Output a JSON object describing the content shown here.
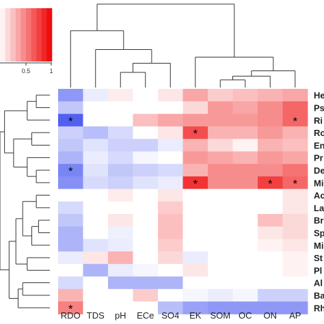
{
  "chart_data": {
    "type": "heatmap",
    "title": "",
    "columns": [
      "RDO",
      "TDS",
      "pH",
      "ECe",
      "SO4",
      "EK",
      "SOM",
      "OC",
      "ON",
      "AP"
    ],
    "rows": [
      "He",
      "Ps",
      "Ri",
      "Ro",
      "En",
      "Pr",
      "De",
      "Mi",
      "Ac",
      "La",
      "Br",
      "Sp",
      "Mi",
      "St",
      "Pl",
      "Al",
      "Ba",
      "Rh"
    ],
    "values": [
      [
        -0.55,
        -0.1,
        0.08,
        0.0,
        0.1,
        0.35,
        0.2,
        0.25,
        0.3,
        0.35
      ],
      [
        -0.3,
        0.0,
        0.0,
        0.0,
        0.0,
        0.15,
        0.4,
        0.35,
        0.45,
        0.6
      ],
      [
        -0.85,
        0.0,
        0.0,
        0.25,
        0.35,
        0.4,
        0.4,
        0.4,
        0.45,
        0.6
      ],
      [
        -0.25,
        -0.35,
        -0.2,
        0.0,
        0.1,
        0.7,
        0.3,
        0.3,
        0.4,
        0.3
      ],
      [
        -0.3,
        -0.15,
        -0.25,
        -0.25,
        -0.1,
        0.3,
        0.15,
        0.05,
        0.3,
        0.25
      ],
      [
        -0.4,
        -0.1,
        -0.2,
        -0.05,
        0.0,
        0.4,
        0.35,
        0.3,
        0.4,
        0.35
      ],
      [
        -0.65,
        -0.15,
        -0.3,
        -0.25,
        -0.2,
        0.3,
        0.45,
        0.45,
        0.45,
        0.55
      ],
      [
        -0.6,
        -0.2,
        -0.25,
        -0.15,
        -0.1,
        0.8,
        0.45,
        0.45,
        0.75,
        0.6
      ],
      [
        0.0,
        0.0,
        0.08,
        0.0,
        0.1,
        0.0,
        0.0,
        0.0,
        0.0,
        0.1
      ],
      [
        -0.2,
        0.0,
        0.0,
        0.0,
        0.2,
        0.0,
        0.0,
        0.0,
        0.0,
        0.1
      ],
      [
        -0.3,
        0.0,
        0.1,
        0.0,
        0.25,
        0.0,
        0.0,
        0.0,
        0.25,
        0.15
      ],
      [
        -0.4,
        0.0,
        -0.08,
        0.0,
        0.25,
        0.0,
        0.0,
        0.0,
        0.1,
        0.15
      ],
      [
        -0.4,
        -0.15,
        -0.1,
        0.0,
        0.2,
        0.0,
        0.0,
        0.0,
        0.05,
        0.1
      ],
      [
        -0.1,
        0.1,
        0.3,
        0.0,
        0.15,
        -0.1,
        0.0,
        0.0,
        0.0,
        0.05
      ],
      [
        0.0,
        -0.4,
        -0.1,
        -0.05,
        0.0,
        0.1,
        0.0,
        0.0,
        0.0,
        0.05
      ],
      [
        -0.2,
        0.0,
        -0.4,
        -0.4,
        -0.4,
        0.0,
        0.0,
        0.0,
        0.0,
        0.0
      ],
      [
        0.3,
        0.0,
        0.0,
        0.2,
        0.0,
        -0.05,
        -0.1,
        -0.05,
        -0.25,
        -0.25
      ],
      [
        0.5,
        0.0,
        0.0,
        0.0,
        -0.35,
        -0.5,
        -0.55,
        -0.55,
        -0.55,
        -0.55
      ]
    ],
    "significant": [
      [
        2,
        0
      ],
      [
        3,
        5
      ],
      [
        2,
        9
      ],
      [
        6,
        0
      ],
      [
        7,
        5
      ],
      [
        7,
        8
      ],
      [
        7,
        9
      ],
      [
        17,
        0
      ]
    ],
    "significance_marker": "*",
    "color_scale": {
      "negative": "#3344ee",
      "zero": "#ffffff",
      "positive": "#ee0000"
    },
    "legend": {
      "position": "top-left",
      "ticks": [
        "0.5",
        "1"
      ],
      "range": [
        0,
        1
      ]
    },
    "row_dendrogram": {
      "nodes": [
        {
          "children": [
            0,
            1
          ],
          "height": 0.3
        },
        {
          "children": [
            18,
            2
          ],
          "height": 0.5
        },
        {
          "children": [
            3,
            4
          ],
          "height": 0.4
        },
        {
          "children": [
            6,
            7
          ],
          "height": 0.3
        },
        {
          "children": [
            5,
            21
          ],
          "height": 0.5
        },
        {
          "children": [
            20,
            22
          ],
          "height": 0.8
        },
        {
          "children": [
            19,
            23
          ],
          "height": 1.0
        },
        {
          "children": [
            8,
            9
          ],
          "height": 0.3
        },
        {
          "children": [
            10,
            11
          ],
          "height": 0.25
        },
        {
          "children": [
            26,
            12
          ],
          "height": 0.4
        },
        {
          "children": [
            25,
            27
          ],
          "height": 0.6
        },
        {
          "children": [
            13,
            14
          ],
          "height": 0.5
        },
        {
          "children": [
            28,
            29
          ],
          "height": 0.75
        },
        {
          "children": [
            15,
            16
          ],
          "height": 0.6
        },
        {
          "children": [
            31,
            17
          ],
          "height": 0.7
        },
        {
          "children": [
            30,
            32
          ],
          "height": 0.9
        },
        {
          "children": [
            24,
            33
          ],
          "height": 1.1
        }
      ]
    },
    "column_dendrogram": {
      "nodes": [
        {
          "children": [
            2,
            3
          ],
          "height": 0.2
        },
        {
          "children": [
            10,
            4
          ],
          "height": 0.32
        },
        {
          "children": [
            1,
            11
          ],
          "height": 0.5
        },
        {
          "children": [
            0,
            12
          ],
          "height": 0.75
        },
        {
          "children": [
            6,
            7
          ],
          "height": 0.1
        },
        {
          "children": [
            14,
            8
          ],
          "height": 0.15
        },
        {
          "children": [
            15,
            9
          ],
          "height": 0.22
        },
        {
          "children": [
            5,
            16
          ],
          "height": 0.4
        },
        {
          "children": [
            13,
            17
          ],
          "height": 1.1
        }
      ]
    }
  }
}
